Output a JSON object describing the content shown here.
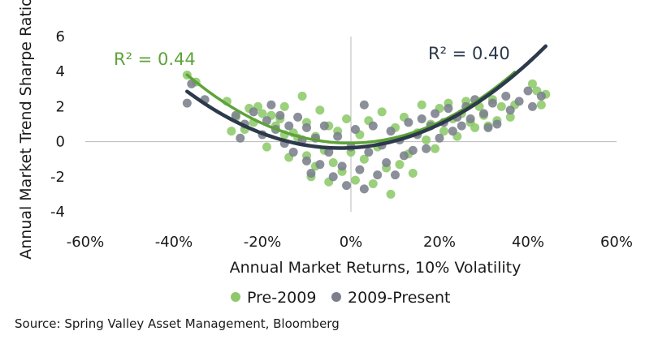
{
  "chart_data": {
    "type": "scatter",
    "title": "",
    "xlabel": "Annual Market Returns, 10% Volatility",
    "ylabel": "Annual Market Trend Sharpe Ratio",
    "xlim": [
      -0.6,
      0.6
    ],
    "ylim": [
      -4,
      6
    ],
    "x_ticks": [
      -0.6,
      -0.4,
      -0.2,
      0,
      0.2,
      0.4,
      0.6
    ],
    "x_tick_labels": [
      "-60%",
      "-40%",
      "-20%",
      "0%",
      "20%",
      "40%",
      "60%"
    ],
    "y_ticks": [
      -4,
      -2,
      0,
      2,
      4,
      6
    ],
    "y_tick_labels": [
      "-4",
      "-2",
      "0",
      "2",
      "4",
      "6"
    ],
    "gridlines": false,
    "legend_position": "bottom",
    "series": [
      {
        "name": "Pre-2009",
        "color": "#8dc96a",
        "trend_color": "#5ea33a",
        "r2_label": "R² = 0.44",
        "trend": {
          "a": 29.0,
          "b": 0.2,
          "c": -0.08,
          "x_range": [
            -0.37,
            0.37
          ]
        },
        "points": [
          [
            -0.37,
            3.8
          ],
          [
            -0.35,
            3.4
          ],
          [
            -0.28,
            2.3
          ],
          [
            -0.27,
            0.6
          ],
          [
            -0.26,
            1.4
          ],
          [
            -0.24,
            0.7
          ],
          [
            -0.23,
            1.9
          ],
          [
            -0.22,
            1.1
          ],
          [
            -0.21,
            2.0
          ],
          [
            -0.2,
            1.6
          ],
          [
            -0.19,
            -0.3
          ],
          [
            -0.18,
            1.5
          ],
          [
            -0.17,
            0.9
          ],
          [
            -0.16,
            1.3
          ],
          [
            -0.15,
            0.4
          ],
          [
            -0.15,
            2.0
          ],
          [
            -0.14,
            -0.9
          ],
          [
            -0.13,
            0.5
          ],
          [
            -0.12,
            0.2
          ],
          [
            -0.11,
            2.6
          ],
          [
            -0.1,
            -0.8
          ],
          [
            -0.1,
            1.1
          ],
          [
            -0.09,
            -2.0
          ],
          [
            -0.08,
            0.3
          ],
          [
            -0.08,
            -1.4
          ],
          [
            -0.07,
            1.8
          ],
          [
            -0.06,
            -0.5
          ],
          [
            -0.05,
            -2.3
          ],
          [
            -0.05,
            0.9
          ],
          [
            -0.04,
            -1.2
          ],
          [
            -0.03,
            0.6
          ],
          [
            -0.02,
            -1.7
          ],
          [
            -0.01,
            1.3
          ],
          [
            0.0,
            -0.6
          ],
          [
            0.01,
            -2.2
          ],
          [
            0.02,
            0.4
          ],
          [
            0.03,
            -1.0
          ],
          [
            0.04,
            1.2
          ],
          [
            0.05,
            -2.4
          ],
          [
            0.06,
            -0.3
          ],
          [
            0.07,
            1.7
          ],
          [
            0.08,
            -1.5
          ],
          [
            0.09,
            -3.0
          ],
          [
            0.1,
            0.8
          ],
          [
            0.11,
            -1.3
          ],
          [
            0.12,
            1.4
          ],
          [
            0.13,
            -0.7
          ],
          [
            0.14,
            -1.8
          ],
          [
            0.15,
            0.5
          ],
          [
            0.16,
            2.1
          ],
          [
            0.17,
            0.1
          ],
          [
            0.18,
            1.0
          ],
          [
            0.19,
            -0.4
          ],
          [
            0.2,
            1.9
          ],
          [
            0.21,
            0.6
          ],
          [
            0.22,
            2.2
          ],
          [
            0.23,
            1.3
          ],
          [
            0.24,
            0.3
          ],
          [
            0.25,
            1.6
          ],
          [
            0.26,
            2.3
          ],
          [
            0.27,
            1.1
          ],
          [
            0.28,
            0.8
          ],
          [
            0.29,
            2.0
          ],
          [
            0.3,
            1.5
          ],
          [
            0.31,
            0.9
          ],
          [
            0.32,
            2.4
          ],
          [
            0.33,
            1.2
          ],
          [
            0.34,
            2.0
          ],
          [
            0.36,
            1.4
          ],
          [
            0.37,
            2.1
          ],
          [
            0.41,
            3.3
          ],
          [
            0.42,
            2.9
          ],
          [
            0.43,
            2.1
          ],
          [
            0.44,
            2.7
          ]
        ]
      },
      {
        "name": "2009-Present",
        "color": "#7b7f8c",
        "trend_color": "#2d3a4b",
        "r2_label": "R² = 0.40",
        "trend": {
          "a": 27.0,
          "b": 1.3,
          "c": -0.35,
          "x_range": [
            -0.37,
            0.44
          ]
        },
        "points": [
          [
            -0.37,
            2.2
          ],
          [
            -0.36,
            3.3
          ],
          [
            -0.33,
            2.4
          ],
          [
            -0.26,
            1.5
          ],
          [
            -0.25,
            0.2
          ],
          [
            -0.24,
            1.0
          ],
          [
            -0.22,
            1.7
          ],
          [
            -0.2,
            0.4
          ],
          [
            -0.19,
            1.2
          ],
          [
            -0.18,
            2.1
          ],
          [
            -0.17,
            0.7
          ],
          [
            -0.16,
            1.5
          ],
          [
            -0.15,
            -0.1
          ],
          [
            -0.14,
            0.9
          ],
          [
            -0.13,
            -0.6
          ],
          [
            -0.12,
            1.4
          ],
          [
            -0.11,
            0.1
          ],
          [
            -0.1,
            -1.1
          ],
          [
            -0.1,
            0.8
          ],
          [
            -0.09,
            -1.8
          ],
          [
            -0.08,
            0.2
          ],
          [
            -0.07,
            -1.3
          ],
          [
            -0.06,
            0.9
          ],
          [
            -0.05,
            -0.6
          ],
          [
            -0.04,
            -2.0
          ],
          [
            -0.03,
            0.3
          ],
          [
            -0.02,
            -1.4
          ],
          [
            -0.01,
            -2.5
          ],
          [
            0.0,
            -0.3
          ],
          [
            0.01,
            0.7
          ],
          [
            0.02,
            -1.6
          ],
          [
            0.03,
            2.1
          ],
          [
            0.03,
            -2.7
          ],
          [
            0.04,
            -0.6
          ],
          [
            0.05,
            0.9
          ],
          [
            0.06,
            -1.9
          ],
          [
            0.07,
            -0.2
          ],
          [
            0.08,
            -1.2
          ],
          [
            0.09,
            0.6
          ],
          [
            0.1,
            -1.9
          ],
          [
            0.11,
            0.1
          ],
          [
            0.12,
            -0.8
          ],
          [
            0.13,
            1.1
          ],
          [
            0.14,
            -0.5
          ],
          [
            0.15,
            0.4
          ],
          [
            0.16,
            1.3
          ],
          [
            0.17,
            -0.4
          ],
          [
            0.18,
            0.9
          ],
          [
            0.19,
            1.6
          ],
          [
            0.2,
            0.2
          ],
          [
            0.21,
            1.1
          ],
          [
            0.22,
            1.9
          ],
          [
            0.23,
            0.6
          ],
          [
            0.24,
            1.4
          ],
          [
            0.25,
            0.9
          ],
          [
            0.26,
            2.0
          ],
          [
            0.27,
            1.3
          ],
          [
            0.28,
            2.4
          ],
          [
            0.3,
            1.6
          ],
          [
            0.31,
            0.8
          ],
          [
            0.32,
            2.2
          ],
          [
            0.33,
            1.0
          ],
          [
            0.35,
            2.6
          ],
          [
            0.36,
            1.8
          ],
          [
            0.38,
            2.3
          ],
          [
            0.4,
            2.9
          ],
          [
            0.41,
            2.0
          ],
          [
            0.43,
            2.6
          ]
        ]
      }
    ]
  },
  "legend": [
    {
      "label": "Pre-2009",
      "color": "#8dc96a"
    },
    {
      "label": "2009-Present",
      "color": "#7b7f8c"
    }
  ],
  "source": "Source: Spring Valley Asset Management, Bloomberg"
}
